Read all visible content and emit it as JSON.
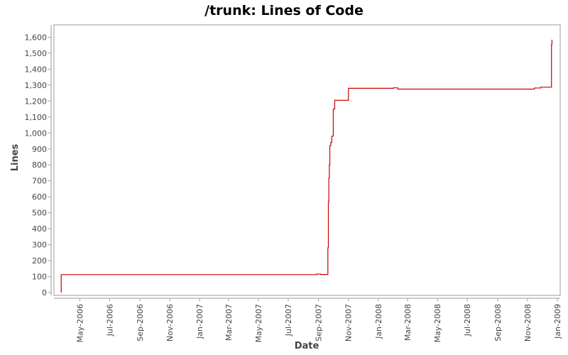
{
  "chart_data": {
    "type": "line",
    "title": "/trunk: Lines of Code",
    "xlabel": "Date",
    "ylabel": "Lines",
    "xlim": [
      "2006-03-15",
      "2009-01-01"
    ],
    "ylim": [
      0,
      1700
    ],
    "y_ticks": [
      0,
      100,
      200,
      300,
      400,
      500,
      600,
      700,
      800,
      900,
      1000,
      1100,
      1200,
      1300,
      1400,
      1500,
      1600
    ],
    "y_tick_labels": [
      "0",
      "100",
      "200",
      "300",
      "400",
      "500",
      "600",
      "700",
      "800",
      "900",
      "1,000",
      "1,100",
      "1,200",
      "1,300",
      "1,400",
      "1,500",
      "1,600"
    ],
    "x_ticks": [
      "2006-05-01",
      "2006-07-01",
      "2006-09-01",
      "2006-11-01",
      "2007-01-01",
      "2007-03-01",
      "2007-05-01",
      "2007-07-01",
      "2007-09-01",
      "2007-11-01",
      "2008-01-01",
      "2008-03-01",
      "2008-05-01",
      "2008-07-01",
      "2008-09-01",
      "2008-11-01",
      "2009-01-01"
    ],
    "x_tick_labels": [
      "May-2006",
      "Jul-2006",
      "Sep-2006",
      "Nov-2006",
      "Jan-2007",
      "Mar-2007",
      "May-2007",
      "Jul-2007",
      "Sep-2007",
      "Nov-2007",
      "Jan-2008",
      "Mar-2008",
      "May-2008",
      "Jul-2008",
      "Sep-2008",
      "Nov-2008",
      "Jan-2009"
    ],
    "grid": false,
    "legend": "none",
    "step": true,
    "series": [
      {
        "color": "#cc0000",
        "points": [
          [
            "2006-03-24",
            0
          ],
          [
            "2006-03-24",
            112
          ],
          [
            "2007-08-28",
            112
          ],
          [
            "2007-08-28",
            116
          ],
          [
            "2007-09-05",
            116
          ],
          [
            "2007-09-05",
            113
          ],
          [
            "2007-09-20",
            113
          ],
          [
            "2007-09-20",
            280
          ],
          [
            "2007-09-21",
            280
          ],
          [
            "2007-09-21",
            570
          ],
          [
            "2007-09-22",
            570
          ],
          [
            "2007-09-22",
            720
          ],
          [
            "2007-09-23",
            720
          ],
          [
            "2007-09-23",
            800
          ],
          [
            "2007-09-24",
            800
          ],
          [
            "2007-09-24",
            920
          ],
          [
            "2007-09-26",
            920
          ],
          [
            "2007-09-26",
            940
          ],
          [
            "2007-09-28",
            940
          ],
          [
            "2007-09-28",
            980
          ],
          [
            "2007-10-01",
            980
          ],
          [
            "2007-10-01",
            1150
          ],
          [
            "2007-10-04",
            1150
          ],
          [
            "2007-10-04",
            1205
          ],
          [
            "2007-11-01",
            1205
          ],
          [
            "2007-11-01",
            1280
          ],
          [
            "2008-02-01",
            1280
          ],
          [
            "2008-02-01",
            1283
          ],
          [
            "2008-02-10",
            1283
          ],
          [
            "2008-02-10",
            1275
          ],
          [
            "2008-11-15",
            1275
          ],
          [
            "2008-11-15",
            1282
          ],
          [
            "2008-11-28",
            1282
          ],
          [
            "2008-11-28",
            1287
          ],
          [
            "2008-12-20",
            1287
          ],
          [
            "2008-12-20",
            1555
          ],
          [
            "2008-12-21",
            1555
          ],
          [
            "2008-12-21",
            1585
          ]
        ]
      }
    ]
  }
}
